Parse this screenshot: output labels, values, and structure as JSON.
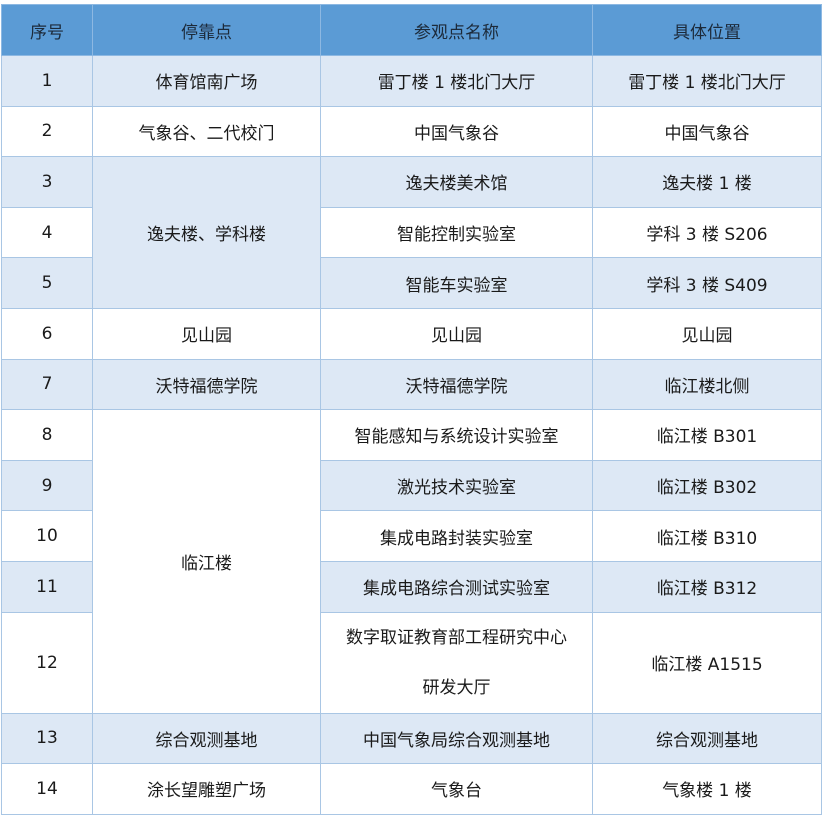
{
  "headers": [
    "序号",
    "停靠点",
    "参观点名称",
    "具体位置"
  ],
  "rows": [
    {
      "no": "1",
      "stop": "体育馆南广场",
      "site": "雷丁楼 1 楼北门大厅",
      "location": "雷丁楼 1 楼北门大厅"
    },
    {
      "no": "2",
      "stop": "气象谷、二代校门",
      "site": "中国气象谷",
      "location": "中国气象谷"
    },
    {
      "no": "3",
      "stop": "逸夫楼、学科楼",
      "site": "逸夫楼美术馆",
      "location": "逸夫楼 1 楼"
    },
    {
      "no": "4",
      "site": "智能控制实验室",
      "location": "学科 3 楼 S206"
    },
    {
      "no": "5",
      "site": "智能车实验室",
      "location": "学科 3 楼 S409"
    },
    {
      "no": "6",
      "stop": "见山园",
      "site": "见山园",
      "location": "见山园"
    },
    {
      "no": "7",
      "stop": "沃特福德学院",
      "site": "沃特福德学院",
      "location": "临江楼北侧"
    },
    {
      "no": "8",
      "stop": "临江楼",
      "site": "智能感知与系统设计实验室",
      "location": "临江楼 B301"
    },
    {
      "no": "9",
      "site": "激光技术实验室",
      "location": "临江楼 B302"
    },
    {
      "no": "10",
      "site": "集成电路封装实验室",
      "location": "临江楼 B310"
    },
    {
      "no": "11",
      "site": "集成电路综合测试实验室",
      "location": "临江楼 B312"
    },
    {
      "no": "12",
      "site_line1": "数字取证教育部工程研究中心",
      "site_line2": "研发大厅",
      "location": "临江楼 A1515"
    },
    {
      "no": "13",
      "stop": "综合观测基地",
      "site": "中国气象局综合观测基地",
      "location": "综合观测基地"
    },
    {
      "no": "14",
      "stop": "涂长望雕塑广场",
      "site": "气象台",
      "location": "气象楼 1 楼"
    }
  ]
}
